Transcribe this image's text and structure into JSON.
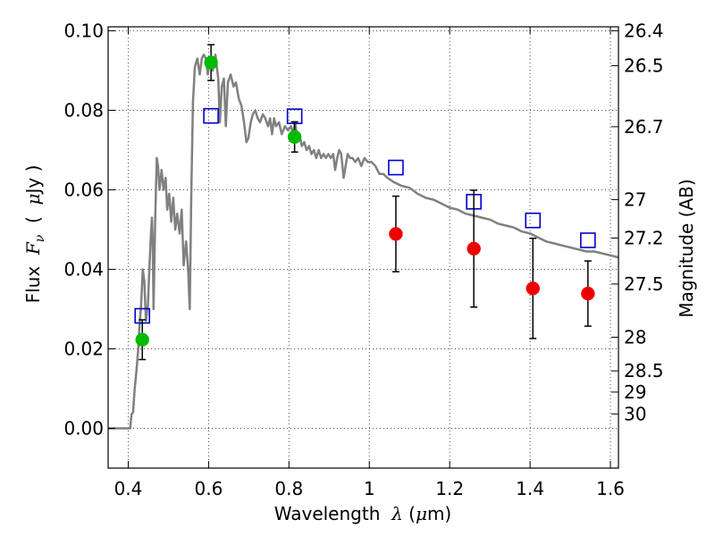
{
  "chart_data": {
    "type": "scatter",
    "xlabel": {
      "prefix": "Wavelength  ",
      "symbol": "λ",
      "unit": " (",
      "unit_symbol": "μ",
      "unit_rest": "m)"
    },
    "ylabel": {
      "prefix": "Flux  ",
      "symbol": "F",
      "subscript": "ν",
      "unit_open": "  (  ",
      "unit_symbol": "μ",
      "unit_rest": "Jy  )"
    },
    "y2label": "Magnitude (AB)",
    "xlim": [
      0.35,
      1.62
    ],
    "ylim": [
      -0.01,
      0.101
    ],
    "x_ticks": [
      {
        "value": 0.4,
        "label": "0.4"
      },
      {
        "value": 0.6,
        "label": "0.6"
      },
      {
        "value": 0.8,
        "label": "0.8"
      },
      {
        "value": 1.0,
        "label": "1"
      },
      {
        "value": 1.2,
        "label": "1.2"
      },
      {
        "value": 1.4,
        "label": "1.4"
      },
      {
        "value": 1.6,
        "label": "1.6"
      }
    ],
    "y_ticks": [
      {
        "value": 0.0,
        "label": "0.00"
      },
      {
        "value": 0.02,
        "label": "0.02"
      },
      {
        "value": 0.04,
        "label": "0.04"
      },
      {
        "value": 0.06,
        "label": "0.06"
      },
      {
        "value": 0.08,
        "label": "0.08"
      },
      {
        "value": 0.1,
        "label": "0.10"
      }
    ],
    "y2_ticks": [
      {
        "value": 26.4,
        "label": "26.4"
      },
      {
        "value": 26.5,
        "label": "26.5"
      },
      {
        "value": 26.7,
        "label": "26.7"
      },
      {
        "value": 27.0,
        "label": "27"
      },
      {
        "value": 27.2,
        "label": "27.2"
      },
      {
        "value": 27.5,
        "label": "27.5"
      },
      {
        "value": 28.0,
        "label": "28"
      },
      {
        "value": 28.5,
        "label": "28.5"
      },
      {
        "value": 29.0,
        "label": "29"
      },
      {
        "value": 30.0,
        "label": "30"
      }
    ],
    "grid": true,
    "colors": {
      "model": "#808080",
      "green": "#00bb00",
      "red": "#ee0000",
      "box": "#0000cc",
      "error": "#000000",
      "grid": "#000000"
    },
    "model_spectrum": [
      [
        0.35,
        0.0
      ],
      [
        0.405,
        0.0
      ],
      [
        0.408,
        0.0035
      ],
      [
        0.412,
        0.004
      ],
      [
        0.416,
        0.01
      ],
      [
        0.42,
        0.014
      ],
      [
        0.425,
        0.02
      ],
      [
        0.428,
        0.026
      ],
      [
        0.432,
        0.031
      ],
      [
        0.436,
        0.04
      ],
      [
        0.44,
        0.037
      ],
      [
        0.444,
        0.027
      ],
      [
        0.449,
        0.031
      ],
      [
        0.453,
        0.041
      ],
      [
        0.456,
        0.048
      ],
      [
        0.459,
        0.053
      ],
      [
        0.461,
        0.047
      ],
      [
        0.463,
        0.03
      ],
      [
        0.467,
        0.052
      ],
      [
        0.471,
        0.068
      ],
      [
        0.474,
        0.066
      ],
      [
        0.478,
        0.06
      ],
      [
        0.483,
        0.065
      ],
      [
        0.488,
        0.06
      ],
      [
        0.493,
        0.063
      ],
      [
        0.497,
        0.055
      ],
      [
        0.502,
        0.059
      ],
      [
        0.507,
        0.052
      ],
      [
        0.512,
        0.058
      ],
      [
        0.517,
        0.05
      ],
      [
        0.522,
        0.054
      ],
      [
        0.528,
        0.049
      ],
      [
        0.533,
        0.055
      ],
      [
        0.538,
        0.041
      ],
      [
        0.544,
        0.047
      ],
      [
        0.549,
        0.04
      ],
      [
        0.553,
        0.03
      ],
      [
        0.557,
        0.06
      ],
      [
        0.561,
        0.082
      ],
      [
        0.566,
        0.091
      ],
      [
        0.572,
        0.093
      ],
      [
        0.578,
        0.089
      ],
      [
        0.583,
        0.093
      ],
      [
        0.588,
        0.094
      ],
      [
        0.593,
        0.093
      ],
      [
        0.598,
        0.089
      ],
      [
        0.604,
        0.093
      ],
      [
        0.61,
        0.09
      ],
      [
        0.617,
        0.094
      ],
      [
        0.624,
        0.088
      ],
      [
        0.628,
        0.077
      ],
      [
        0.633,
        0.086
      ],
      [
        0.638,
        0.088
      ],
      [
        0.643,
        0.076
      ],
      [
        0.648,
        0.087
      ],
      [
        0.655,
        0.089
      ],
      [
        0.662,
        0.086
      ],
      [
        0.668,
        0.087
      ],
      [
        0.675,
        0.083
      ],
      [
        0.682,
        0.081
      ],
      [
        0.688,
        0.077
      ],
      [
        0.694,
        0.072
      ],
      [
        0.699,
        0.073
      ],
      [
        0.705,
        0.077
      ],
      [
        0.71,
        0.079
      ],
      [
        0.716,
        0.08
      ],
      [
        0.722,
        0.078
      ],
      [
        0.728,
        0.077
      ],
      [
        0.735,
        0.079
      ],
      [
        0.741,
        0.078
      ],
      [
        0.748,
        0.076
      ],
      [
        0.753,
        0.078
      ],
      [
        0.758,
        0.074
      ],
      [
        0.763,
        0.078
      ],
      [
        0.768,
        0.076
      ],
      [
        0.775,
        0.077
      ],
      [
        0.782,
        0.074
      ],
      [
        0.79,
        0.076
      ],
      [
        0.797,
        0.075
      ],
      [
        0.805,
        0.076
      ],
      [
        0.81,
        0.074
      ],
      [
        0.815,
        0.077
      ],
      [
        0.821,
        0.073
      ],
      [
        0.826,
        0.074
      ],
      [
        0.832,
        0.071
      ],
      [
        0.838,
        0.072
      ],
      [
        0.844,
        0.07
      ],
      [
        0.85,
        0.071
      ],
      [
        0.856,
        0.069
      ],
      [
        0.862,
        0.07
      ],
      [
        0.868,
        0.068
      ],
      [
        0.874,
        0.07
      ],
      [
        0.88,
        0.068
      ],
      [
        0.886,
        0.069
      ],
      [
        0.892,
        0.068
      ],
      [
        0.898,
        0.069
      ],
      [
        0.904,
        0.068
      ],
      [
        0.91,
        0.069
      ],
      [
        0.915,
        0.065
      ],
      [
        0.92,
        0.068
      ],
      [
        0.925,
        0.07
      ],
      [
        0.93,
        0.069
      ],
      [
        0.936,
        0.063
      ],
      [
        0.941,
        0.066
      ],
      [
        0.946,
        0.069
      ],
      [
        0.952,
        0.068
      ],
      [
        0.958,
        0.068
      ],
      [
        0.965,
        0.067
      ],
      [
        0.972,
        0.068
      ],
      [
        0.98,
        0.066
      ],
      [
        0.988,
        0.068
      ],
      [
        0.996,
        0.067
      ],
      [
        1.005,
        0.067
      ],
      [
        1.015,
        0.066
      ],
      [
        1.025,
        0.064
      ],
      [
        1.035,
        0.064
      ],
      [
        1.045,
        0.063
      ],
      [
        1.06,
        0.062
      ],
      [
        1.08,
        0.061
      ],
      [
        1.1,
        0.0605
      ],
      [
        1.12,
        0.059
      ],
      [
        1.14,
        0.058
      ],
      [
        1.16,
        0.0575
      ],
      [
        1.18,
        0.0565
      ],
      [
        1.2,
        0.0555
      ],
      [
        1.22,
        0.055
      ],
      [
        1.24,
        0.054
      ],
      [
        1.26,
        0.0535
      ],
      [
        1.28,
        0.053
      ],
      [
        1.3,
        0.0525
      ],
      [
        1.32,
        0.0515
      ],
      [
        1.34,
        0.051
      ],
      [
        1.36,
        0.0505
      ],
      [
        1.38,
        0.0495
      ],
      [
        1.4,
        0.049
      ],
      [
        1.42,
        0.048
      ],
      [
        1.44,
        0.047
      ],
      [
        1.46,
        0.0465
      ],
      [
        1.48,
        0.046
      ],
      [
        1.5,
        0.0455
      ],
      [
        1.52,
        0.045
      ],
      [
        1.54,
        0.0445
      ],
      [
        1.56,
        0.0445
      ],
      [
        1.58,
        0.044
      ],
      [
        1.6,
        0.0435
      ],
      [
        1.62,
        0.043
      ]
    ],
    "green_points": [
      {
        "x": 0.435,
        "y": 0.0223,
        "yerr": 0.005
      },
      {
        "x": 0.606,
        "y": 0.092,
        "yerr": 0.0045
      },
      {
        "x": 0.814,
        "y": 0.0733,
        "yerr": 0.0038
      }
    ],
    "red_points": [
      {
        "x": 1.066,
        "y": 0.0489,
        "yerr": 0.0095
      },
      {
        "x": 1.26,
        "y": 0.0452,
        "yerr": 0.0147
      },
      {
        "x": 1.407,
        "y": 0.0352,
        "yerr": 0.0126
      },
      {
        "x": 1.544,
        "y": 0.0339,
        "yerr": 0.0082
      }
    ],
    "model_boxes": [
      {
        "x": 0.435,
        "y": 0.0283
      },
      {
        "x": 0.606,
        "y": 0.0786
      },
      {
        "x": 0.814,
        "y": 0.0785
      },
      {
        "x": 1.066,
        "y": 0.0656
      },
      {
        "x": 1.26,
        "y": 0.057
      },
      {
        "x": 1.407,
        "y": 0.0523
      },
      {
        "x": 1.544,
        "y": 0.0473
      }
    ]
  }
}
